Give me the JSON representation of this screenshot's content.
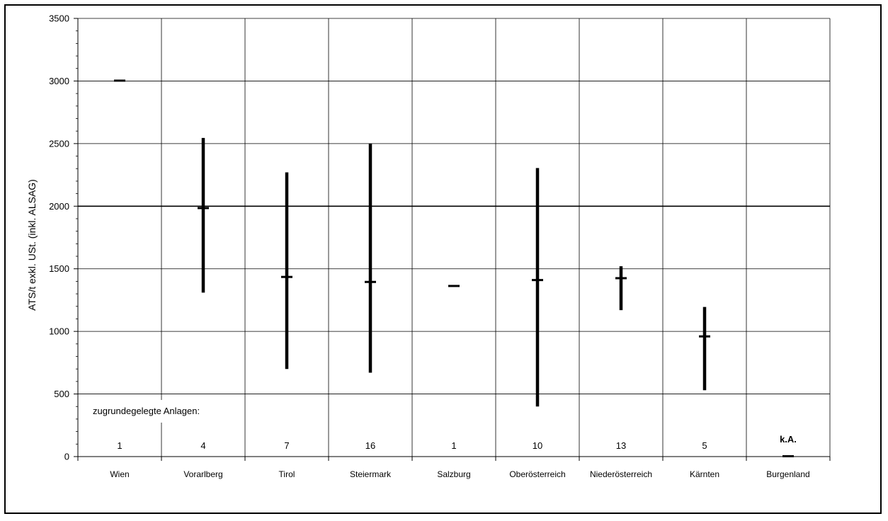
{
  "chart_data": {
    "type": "range",
    "ylabel": "ATS/t exkl. USt. (inkl. ALSAG)",
    "ylim": [
      0,
      3500
    ],
    "yticks": [
      0,
      500,
      1000,
      1500,
      2000,
      2500,
      3000,
      3500
    ],
    "grid": true,
    "reference_line": 2000,
    "categories": [
      "Wien",
      "Vorarlberg",
      "Tirol",
      "Steiermark",
      "Salzburg",
      "Oberösterreich",
      "Niederösterreich",
      "Kärnten",
      "Burgenland"
    ],
    "series": [
      {
        "min": [
          3000,
          1310,
          700,
          670,
          1360,
          400,
          1170,
          530,
          0
        ],
        "max": [
          3000,
          2545,
          2270,
          2500,
          1360,
          2305,
          1520,
          1195,
          0
        ],
        "mean": [
          3000,
          1985,
          1435,
          1395,
          1360,
          1410,
          1425,
          960,
          0
        ]
      }
    ],
    "counts_label": "zugrundegelegte Anlagen:",
    "counts": [
      "1",
      "4",
      "7",
      "16",
      "1",
      "10",
      "13",
      "5",
      "k.A."
    ]
  }
}
